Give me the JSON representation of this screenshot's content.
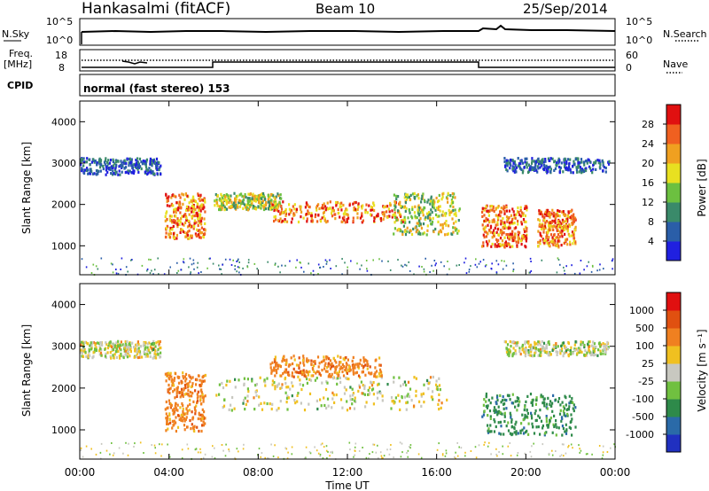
{
  "header": {
    "station": "Hankasalmi (fitACF)",
    "beam": "Beam 10",
    "date": "25/Sep/2014"
  },
  "noise_panel": {
    "left_label": "N.Sky",
    "left_ticks": [
      "10^5",
      "10^0"
    ],
    "right_ticks": [
      "10^5",
      "10^0"
    ],
    "right_label": "N.Search"
  },
  "freq_panel": {
    "left_label_line1": "Freq.",
    "left_label_line2": "[MHz]",
    "left_ticks": [
      "18",
      "8"
    ],
    "right_ticks": [
      "60",
      "0"
    ],
    "right_label": "Nave"
  },
  "cpid_panel": {
    "label": "CPID",
    "text": "normal (fast stereo) 153"
  },
  "power_panel": {
    "ylabel": "Slant Range [km]",
    "yticks": [
      "4000",
      "3000",
      "2000",
      "1000"
    ],
    "colorbar_label": "Power [dB]",
    "colorbar_ticks": [
      "28",
      "24",
      "20",
      "16",
      "12",
      "8",
      "4"
    ],
    "colors": [
      "#2020e0",
      "#2a5ea8",
      "#3a8a6a",
      "#6cc040",
      "#e8e020",
      "#f0a020",
      "#f06020",
      "#e01010"
    ]
  },
  "velocity_panel": {
    "ylabel": "Slant Range [km]",
    "yticks": [
      "4000",
      "3000",
      "2000",
      "1000"
    ],
    "colorbar_label": "Velocity [m s⁻¹]",
    "colorbar_ticks": [
      "1000",
      "500",
      "100",
      "25",
      "-25",
      "-100",
      "-500",
      "-1000"
    ],
    "colors": [
      "#2030c0",
      "#2a6aa8",
      "#2e8a4a",
      "#70c040",
      "#c8c8c0",
      "#f0c020",
      "#f08020",
      "#e05010",
      "#e01010"
    ]
  },
  "xaxis": {
    "ticks": [
      "00:00",
      "04:00",
      "08:00",
      "12:00",
      "16:00",
      "20:00",
      "00:00"
    ],
    "label": "Time UT"
  },
  "chart_data": {
    "type": "heatmap",
    "title": "Hankasalmi (fitACF)",
    "subtitle": "Beam 10",
    "xlabel": "Time UT",
    "ylabel": "Slant Range [km]",
    "xlim": [
      0,
      24
    ],
    "ylim": [
      300,
      4500
    ],
    "power_regions": [
      {
        "t0": 0.0,
        "t1": 3.6,
        "r0": 2750,
        "r1": 3150,
        "level": "low"
      },
      {
        "t0": 3.8,
        "t1": 5.6,
        "r0": 1200,
        "r1": 2300,
        "level": "high"
      },
      {
        "t0": 6.0,
        "t1": 9.0,
        "r0": 1900,
        "r1": 2300,
        "level": "mid"
      },
      {
        "t0": 8.5,
        "t1": 14.5,
        "r0": 1600,
        "r1": 2100,
        "level": "high"
      },
      {
        "t0": 14.0,
        "t1": 17.0,
        "r0": 1300,
        "r1": 2300,
        "level": "mid"
      },
      {
        "t0": 18.0,
        "t1": 20.0,
        "r0": 1000,
        "r1": 2000,
        "level": "high"
      },
      {
        "t0": 20.5,
        "t1": 22.2,
        "r0": 1000,
        "r1": 1900,
        "level": "high"
      },
      {
        "t0": 19.0,
        "t1": 23.7,
        "r0": 2800,
        "r1": 3150,
        "level": "low"
      }
    ],
    "velocity_regions": [
      {
        "t0": 0.0,
        "t1": 3.6,
        "r0": 2750,
        "r1": 3150,
        "v": 0
      },
      {
        "t0": 3.8,
        "t1": 5.6,
        "r0": 1000,
        "r1": 2400,
        "v": -300
      },
      {
        "t0": 6.0,
        "t1": 16.5,
        "r0": 1500,
        "r1": 2300,
        "v": 0
      },
      {
        "t0": 8.5,
        "t1": 13.5,
        "r0": 2300,
        "r1": 2800,
        "v": -200
      },
      {
        "t0": 18.0,
        "t1": 22.2,
        "r0": 900,
        "r1": 1900,
        "v": 200
      },
      {
        "t0": 19.0,
        "t1": 23.7,
        "r0": 2800,
        "r1": 3150,
        "v": 0
      }
    ],
    "cpid": 153,
    "mode": "normal (fast stereo)"
  }
}
